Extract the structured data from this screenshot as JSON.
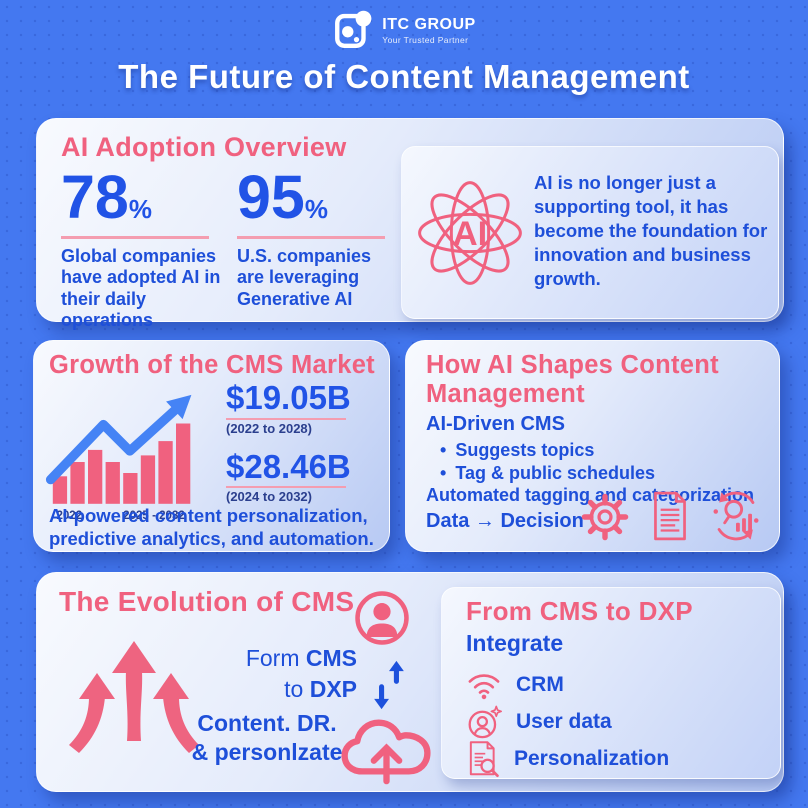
{
  "colors": {
    "background": "#4478F0",
    "pink": "#F0617F",
    "blue_text": "#1E4FD9",
    "blue_number": "#2153E6",
    "navy_small": "#2B3F8E",
    "trend_arrow": "#4583F5",
    "sync_arrow": "#1D51DC"
  },
  "brand": {
    "name": "ITC GROUP",
    "tagline": "Your Trusted Partner"
  },
  "page": {
    "title": "The Future of Content Management"
  },
  "adoption": {
    "title": "AI Adoption Overview",
    "stats": [
      {
        "value": "78",
        "unit": "%",
        "label": "Global companies have adopted AI in their daily operations"
      },
      {
        "value": "95",
        "unit": "%",
        "label": "U.S. companies are leveraging Generative AI"
      }
    ],
    "ai_label": "AI",
    "quote": "AI is no longer just a supporting tool, it has become the foundation for innovation and business growth."
  },
  "growth": {
    "title": "Growth of the CMS Market",
    "figures": [
      {
        "value": "$19.05B",
        "period": "(2022 to 2028)"
      },
      {
        "value": "$28.46B",
        "period": "(2024 to 2032)"
      }
    ],
    "caption": "AI-powered content personalization, predictive analytics, and automation."
  },
  "shapes": {
    "title": "How AI Shapes Content Management",
    "heading": "AI-Driven CMS",
    "bullets": [
      "Suggests topics",
      "Tag & public schedules"
    ],
    "line1": "Automated tagging and categorization",
    "line2": "Data → Decision",
    "icons": [
      "gear-icon",
      "document-icon",
      "analytics-icon"
    ]
  },
  "evolution": {
    "title": "The Evolution of CMS",
    "word1": "Form",
    "word2": "CMS",
    "word3": "to",
    "word4": "DXP",
    "line2a": "Content. DR.",
    "line2b": "& personlzate"
  },
  "dxp": {
    "title": "From CMS to DXP",
    "subtitle": "Integrate",
    "items": [
      {
        "icon": "wifi-icon",
        "label": "CRM"
      },
      {
        "icon": "user-data-icon",
        "label": "User data"
      },
      {
        "icon": "personalization-icon",
        "label": "Personalization"
      }
    ]
  },
  "chart_data": {
    "type": "bar",
    "title": "Growth of the CMS Market",
    "x_labels": [
      "2022",
      "2025 - 2032"
    ],
    "values_relative": [
      25,
      38,
      49,
      38,
      28,
      44,
      57,
      73
    ],
    "trend": "up",
    "annotations": [
      {
        "value": "$19.05B",
        "period": "(2022 to 2028)"
      },
      {
        "value": "$28.46B",
        "period": "(2024 to 2032)"
      }
    ]
  }
}
